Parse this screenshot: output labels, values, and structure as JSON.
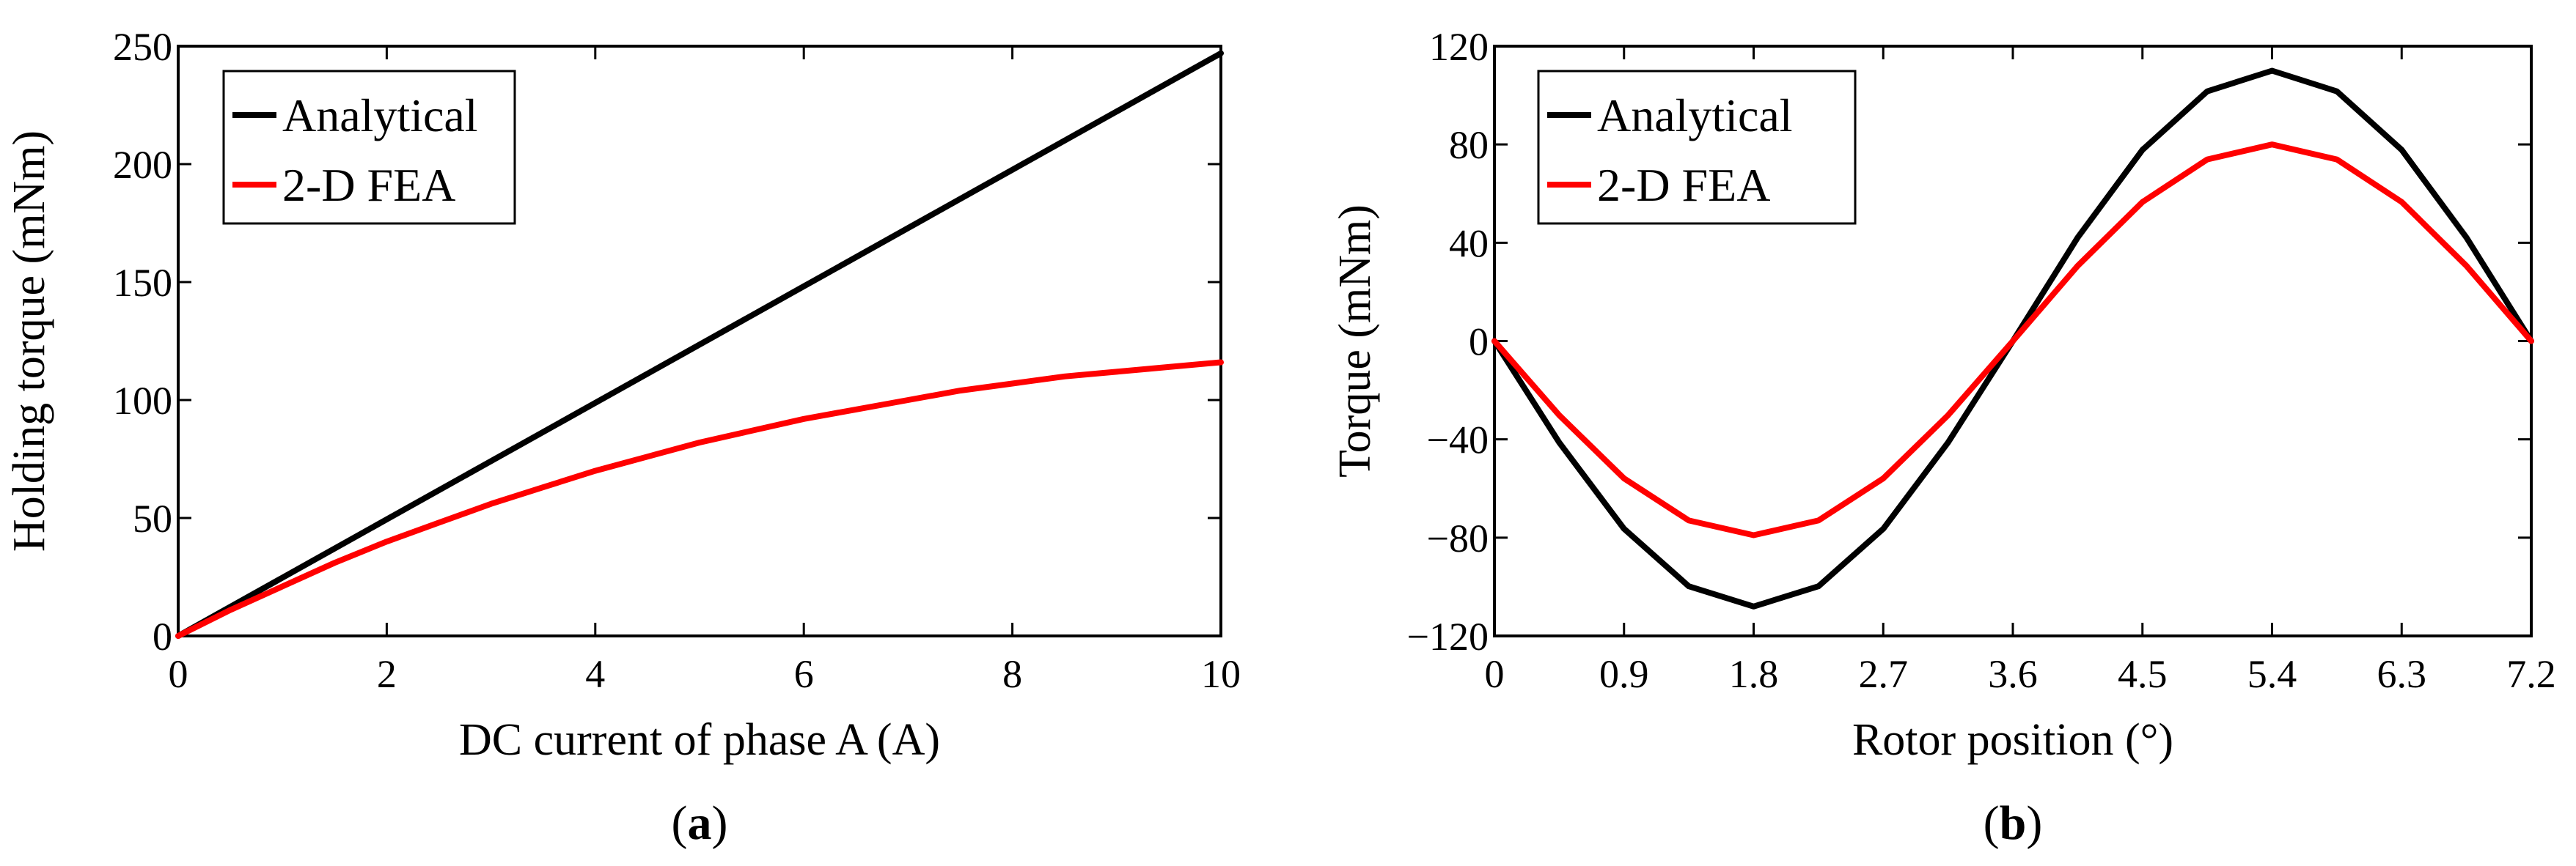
{
  "chart_data": [
    {
      "type": "line",
      "panel": "a",
      "caption_open": "(",
      "caption_letter": "a",
      "caption_close": ")",
      "xlabel": "DC current of phase A (A)",
      "ylabel": "Holding torque (mNm)",
      "xlim": [
        0,
        10
      ],
      "ylim": [
        0,
        250
      ],
      "xticks": [
        0,
        2,
        4,
        6,
        8,
        10
      ],
      "yticks": [
        0,
        50,
        100,
        150,
        200,
        250
      ],
      "legend_position": "top-left",
      "series": [
        {
          "name": "Analytical",
          "color": "#000000",
          "x": [
            0,
            2,
            4,
            6,
            8,
            10
          ],
          "y": [
            0,
            49.4,
            98.8,
            148.2,
            197.6,
            247
          ]
        },
        {
          "name": "2-D FEA",
          "color": "#ff0000",
          "x": [
            0,
            0.5,
            1,
            1.5,
            2,
            2.5,
            3,
            3.5,
            4,
            4.5,
            5,
            5.5,
            6,
            6.5,
            7,
            7.5,
            8,
            8.5,
            9,
            9.5,
            10
          ],
          "y": [
            0,
            11,
            21,
            31,
            40,
            48,
            56,
            63,
            70,
            76,
            82,
            87,
            92,
            96,
            100,
            104,
            107,
            110,
            112,
            114,
            116
          ]
        }
      ]
    },
    {
      "type": "line",
      "panel": "b",
      "caption_open": "(",
      "caption_letter": "b",
      "caption_close": ")",
      "xlabel": "Rotor position (°)",
      "ylabel": "Torque (mNm)",
      "xlim": [
        0,
        7.2
      ],
      "ylim": [
        -120,
        120
      ],
      "xticks": [
        "0",
        "0.9",
        "1.8",
        "2.7",
        "3.6",
        "4.5",
        "5.4",
        "6.3",
        "7.2"
      ],
      "yticks": [
        "−120",
        "−80",
        "−40",
        "0",
        "40",
        "80",
        "120"
      ],
      "legend_position": "top-left",
      "series": [
        {
          "name": "Analytical",
          "color": "#000000",
          "x": [
            0,
            0.45,
            0.9,
            1.35,
            1.8,
            2.25,
            2.7,
            3.15,
            3.6,
            4.05,
            4.5,
            4.95,
            5.4,
            5.85,
            6.3,
            6.75,
            7.2
          ],
          "y": [
            0,
            -41.3,
            -76.4,
            -99.8,
            -108,
            -99.8,
            -76.4,
            -41.3,
            0,
            42.1,
            77.8,
            101.6,
            110,
            101.6,
            77.8,
            42.1,
            0
          ]
        },
        {
          "name": "2-D FEA",
          "color": "#ff0000",
          "x": [
            0,
            0.45,
            0.9,
            1.35,
            1.8,
            2.25,
            2.7,
            3.15,
            3.6,
            4.05,
            4.5,
            4.95,
            5.4,
            5.85,
            6.3,
            6.75,
            7.2
          ],
          "y": [
            0,
            -30.2,
            -55.9,
            -73,
            -79,
            -73,
            -55.9,
            -30.2,
            0,
            30.6,
            56.6,
            73.9,
            80,
            73.9,
            56.6,
            30.6,
            0
          ]
        }
      ]
    }
  ]
}
